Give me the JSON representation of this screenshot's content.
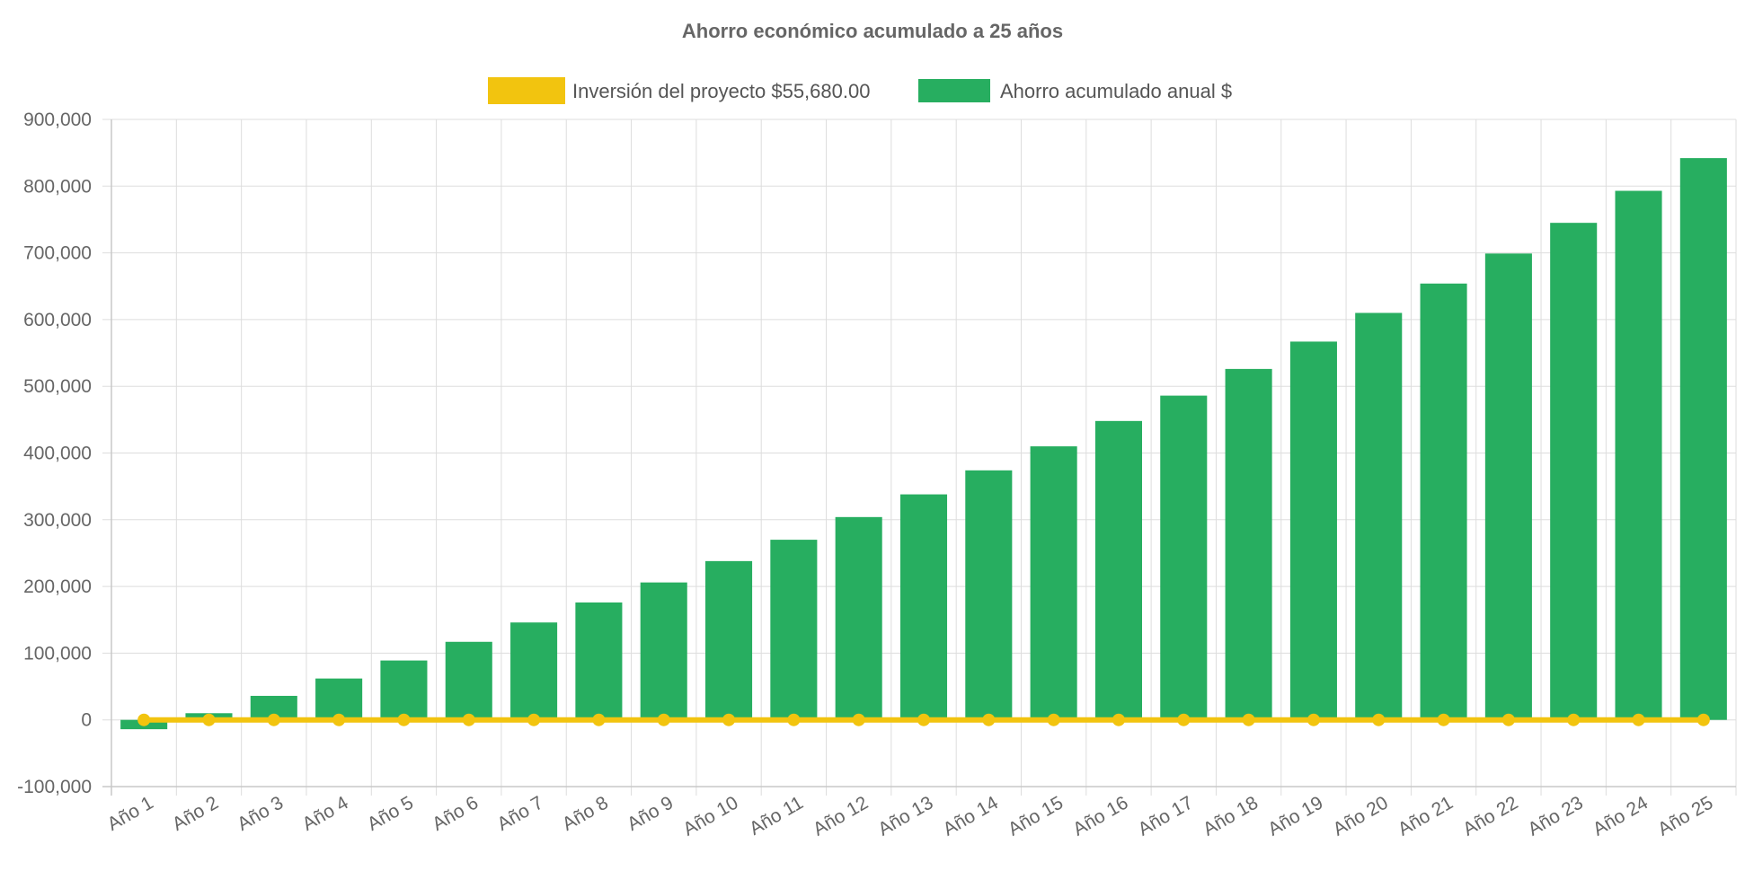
{
  "chart_data": {
    "type": "bar",
    "title": "Ahorro económico acumulado a 25 años",
    "xlabel": "",
    "ylabel": "",
    "ylim": [
      -100000,
      900000
    ],
    "yticks": [
      -100000,
      0,
      100000,
      200000,
      300000,
      400000,
      500000,
      600000,
      700000,
      800000,
      900000
    ],
    "grid": true,
    "legend_position": "top-center",
    "categories": [
      "Año 1",
      "Año 2",
      "Año 3",
      "Año 4",
      "Año 5",
      "Año 6",
      "Año 7",
      "Año 8",
      "Año 9",
      "Año 10",
      "Año 11",
      "Año 12",
      "Año 13",
      "Año 14",
      "Año 15",
      "Año 16",
      "Año 17",
      "Año 18",
      "Año 19",
      "Año 20",
      "Año 21",
      "Año 22",
      "Año 23",
      "Año 24",
      "Año 25"
    ],
    "series": [
      {
        "name": "Inversión del proyecto $55,680.00",
        "type": "line",
        "color": "#f2c40f",
        "values": [
          0,
          0,
          0,
          0,
          0,
          0,
          0,
          0,
          0,
          0,
          0,
          0,
          0,
          0,
          0,
          0,
          0,
          0,
          0,
          0,
          0,
          0,
          0,
          0,
          0
        ]
      },
      {
        "name": "Ahorro acumulado anual $",
        "type": "bar",
        "color": "#27ae60",
        "values": [
          -14000,
          10000,
          36000,
          62000,
          89000,
          117000,
          146000,
          176000,
          206000,
          238000,
          270000,
          304000,
          338000,
          374000,
          410000,
          448000,
          486000,
          526000,
          567000,
          610000,
          654000,
          699000,
          745000,
          793000,
          842000
        ]
      }
    ]
  }
}
